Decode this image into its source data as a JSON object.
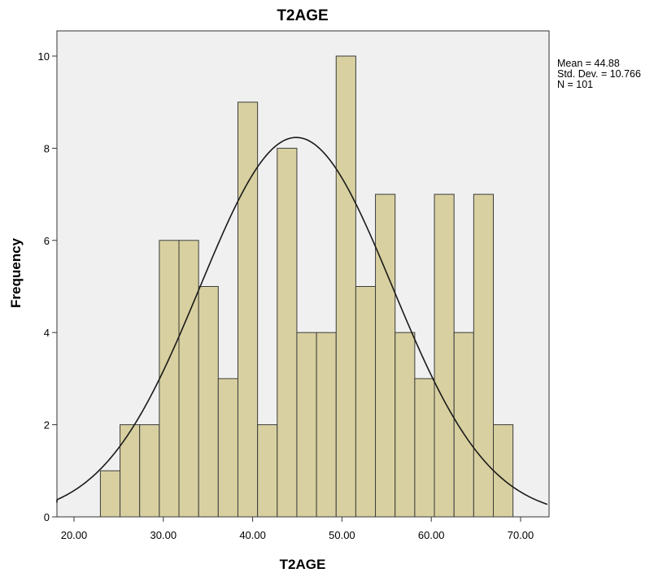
{
  "chart_data": {
    "type": "bar",
    "title": "T2AGE",
    "xlabel": "T2AGE",
    "ylabel": "Frequency",
    "bin_width": 2.2,
    "bins": [
      {
        "start": 22.95,
        "end": 25.15,
        "count": 1
      },
      {
        "start": 25.15,
        "end": 27.35,
        "count": 2
      },
      {
        "start": 27.35,
        "end": 29.55,
        "count": 2
      },
      {
        "start": 29.55,
        "end": 31.75,
        "count": 6
      },
      {
        "start": 31.75,
        "end": 33.95,
        "count": 6
      },
      {
        "start": 33.95,
        "end": 36.15,
        "count": 5
      },
      {
        "start": 36.15,
        "end": 38.35,
        "count": 3
      },
      {
        "start": 38.35,
        "end": 40.55,
        "count": 9
      },
      {
        "start": 40.55,
        "end": 42.75,
        "count": 2
      },
      {
        "start": 42.75,
        "end": 44.95,
        "count": 8
      },
      {
        "start": 44.95,
        "end": 47.15,
        "count": 4
      },
      {
        "start": 47.15,
        "end": 49.35,
        "count": 4
      },
      {
        "start": 49.35,
        "end": 51.55,
        "count": 10
      },
      {
        "start": 51.55,
        "end": 53.75,
        "count": 5
      },
      {
        "start": 53.75,
        "end": 55.95,
        "count": 7
      },
      {
        "start": 55.95,
        "end": 58.15,
        "count": 4
      },
      {
        "start": 58.15,
        "end": 60.35,
        "count": 3
      },
      {
        "start": 60.35,
        "end": 62.55,
        "count": 7
      },
      {
        "start": 62.55,
        "end": 64.75,
        "count": 4
      },
      {
        "start": 64.75,
        "end": 66.95,
        "count": 7
      },
      {
        "start": 66.95,
        "end": 69.15,
        "count": 2
      }
    ],
    "normal_curve": {
      "mean": 44.88,
      "std_dev": 10.766,
      "n": 101
    },
    "stats_labels": [
      "Mean = 44.88",
      "Std. Dev. = 10.766",
      "N = 101"
    ],
    "xlim": [
      17.3,
      73.0
    ],
    "ylim": [
      0,
      10.5
    ],
    "x_ticks": [
      20,
      30,
      40,
      50,
      60,
      70
    ],
    "x_tick_labels": [
      "20.00",
      "30.00",
      "40.00",
      "50.00",
      "60.00",
      "70.00"
    ],
    "y_ticks": [
      0,
      2,
      4,
      6,
      8,
      10
    ],
    "y_tick_labels": [
      "0",
      "2",
      "4",
      "6",
      "8",
      "10"
    ],
    "grid": false,
    "legend": "none",
    "colors": {
      "bar_fill": "#d8d0a0",
      "bar_stroke": "#3c3c3c",
      "plot_background": "#f0f0f0",
      "curve": "#1a1a1a",
      "axis": "#333333",
      "text": "#000000"
    }
  }
}
